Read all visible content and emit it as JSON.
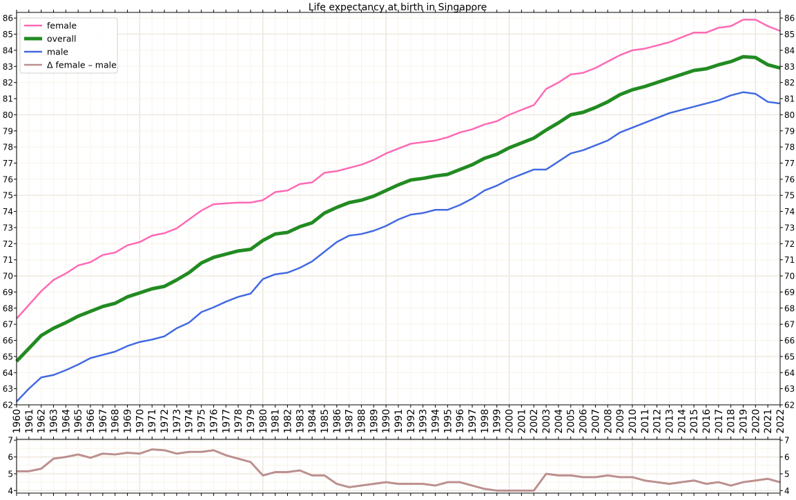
{
  "chart_data": [
    {
      "type": "line",
      "title": "Life expectancy at birth in Singapore",
      "xlabel": "",
      "ylabel": "",
      "x": [
        1960,
        1961,
        1962,
        1963,
        1964,
        1965,
        1966,
        1967,
        1968,
        1969,
        1970,
        1971,
        1972,
        1973,
        1974,
        1975,
        1976,
        1977,
        1978,
        1979,
        1980,
        1981,
        1982,
        1983,
        1984,
        1985,
        1986,
        1987,
        1988,
        1989,
        1990,
        1991,
        1992,
        1993,
        1994,
        1995,
        1996,
        1997,
        1998,
        1999,
        2000,
        2001,
        2002,
        2003,
        2004,
        2005,
        2006,
        2007,
        2008,
        2009,
        2010,
        2011,
        2012,
        2013,
        2014,
        2015,
        2016,
        2017,
        2018,
        2019,
        2020,
        2021,
        2022
      ],
      "xlim": [
        1960,
        2022
      ],
      "ylim": [
        62,
        86
      ],
      "yticks": [
        62,
        63,
        64,
        65,
        66,
        67,
        68,
        69,
        70,
        71,
        72,
        73,
        74,
        75,
        76,
        77,
        78,
        79,
        80,
        81,
        82,
        83,
        84,
        85,
        86
      ],
      "grid": true,
      "legend_position": "top-left",
      "series": [
        {
          "name": "female",
          "color": "#ff69b4",
          "values": [
            67.35,
            68.2,
            69.05,
            69.75,
            70.15,
            70.65,
            70.85,
            71.3,
            71.45,
            71.9,
            72.1,
            72.5,
            72.65,
            72.95,
            73.5,
            74.05,
            74.45,
            74.5,
            74.55,
            74.55,
            74.7,
            75.2,
            75.3,
            75.7,
            75.8,
            76.4,
            76.5,
            76.7,
            76.9,
            77.2,
            77.6,
            77.9,
            78.2,
            78.3,
            78.4,
            78.6,
            78.9,
            79.1,
            79.4,
            79.6,
            80.0,
            80.3,
            80.6,
            81.6,
            82.0,
            82.5,
            82.6,
            82.9,
            83.3,
            83.7,
            84.0,
            84.1,
            84.3,
            84.5,
            84.8,
            85.1,
            85.1,
            85.4,
            85.5,
            85.9,
            85.9,
            85.5,
            85.2
          ]
        },
        {
          "name": "overall",
          "color": "#228b22",
          "values": [
            64.7,
            65.5,
            66.3,
            66.75,
            67.1,
            67.5,
            67.8,
            68.1,
            68.3,
            68.7,
            68.95,
            69.2,
            69.35,
            69.75,
            70.2,
            70.8,
            71.15,
            71.35,
            71.55,
            71.65,
            72.2,
            72.6,
            72.7,
            73.05,
            73.3,
            73.9,
            74.25,
            74.55,
            74.7,
            74.95,
            75.3,
            75.65,
            75.95,
            76.05,
            76.2,
            76.3,
            76.6,
            76.9,
            77.3,
            77.55,
            77.95,
            78.25,
            78.55,
            79.05,
            79.5,
            80.0,
            80.15,
            80.45,
            80.8,
            81.25,
            81.55,
            81.75,
            82.0,
            82.25,
            82.5,
            82.75,
            82.85,
            83.1,
            83.3,
            83.6,
            83.55,
            83.1,
            82.9
          ]
        },
        {
          "name": "male",
          "color": "#4169e1",
          "values": [
            62.2,
            63.0,
            63.7,
            63.85,
            64.15,
            64.5,
            64.9,
            65.1,
            65.3,
            65.65,
            65.9,
            66.05,
            66.25,
            66.75,
            67.1,
            67.75,
            68.05,
            68.4,
            68.7,
            68.9,
            69.8,
            70.1,
            70.2,
            70.5,
            70.9,
            71.5,
            72.1,
            72.5,
            72.6,
            72.8,
            73.1,
            73.5,
            73.8,
            73.9,
            74.1,
            74.1,
            74.4,
            74.8,
            75.3,
            75.6,
            76.0,
            76.3,
            76.6,
            76.6,
            77.1,
            77.6,
            77.8,
            78.1,
            78.4,
            78.9,
            79.2,
            79.5,
            79.8,
            80.1,
            80.3,
            80.5,
            80.7,
            80.9,
            81.2,
            81.4,
            81.3,
            80.8,
            80.7
          ]
        },
        {
          "name": "Δ female – male",
          "color": "#bc8f8f",
          "legend_only": true
        }
      ]
    },
    {
      "type": "line",
      "xlim": [
        1960,
        2022
      ],
      "ylim": [
        3.9,
        7
      ],
      "yticks": [
        4,
        5,
        6,
        7
      ],
      "grid": true,
      "series": [
        {
          "name": "Δ female – male",
          "color": "#bc8f8f",
          "values": [
            5.15,
            5.15,
            5.3,
            5.9,
            6.0,
            6.15,
            5.95,
            6.2,
            6.15,
            6.25,
            6.2,
            6.45,
            6.4,
            6.2,
            6.3,
            6.3,
            6.4,
            6.1,
            5.9,
            5.7,
            4.9,
            5.1,
            5.1,
            5.2,
            4.9,
            4.9,
            4.4,
            4.2,
            4.3,
            4.4,
            4.5,
            4.4,
            4.4,
            4.4,
            4.3,
            4.5,
            4.5,
            4.3,
            4.1,
            4.0,
            4.0,
            4.0,
            4.0,
            5.0,
            4.9,
            4.9,
            4.8,
            4.8,
            4.9,
            4.8,
            4.8,
            4.6,
            4.5,
            4.4,
            4.5,
            4.6,
            4.4,
            4.5,
            4.3,
            4.5,
            4.6,
            4.7,
            4.5
          ]
        }
      ]
    }
  ]
}
